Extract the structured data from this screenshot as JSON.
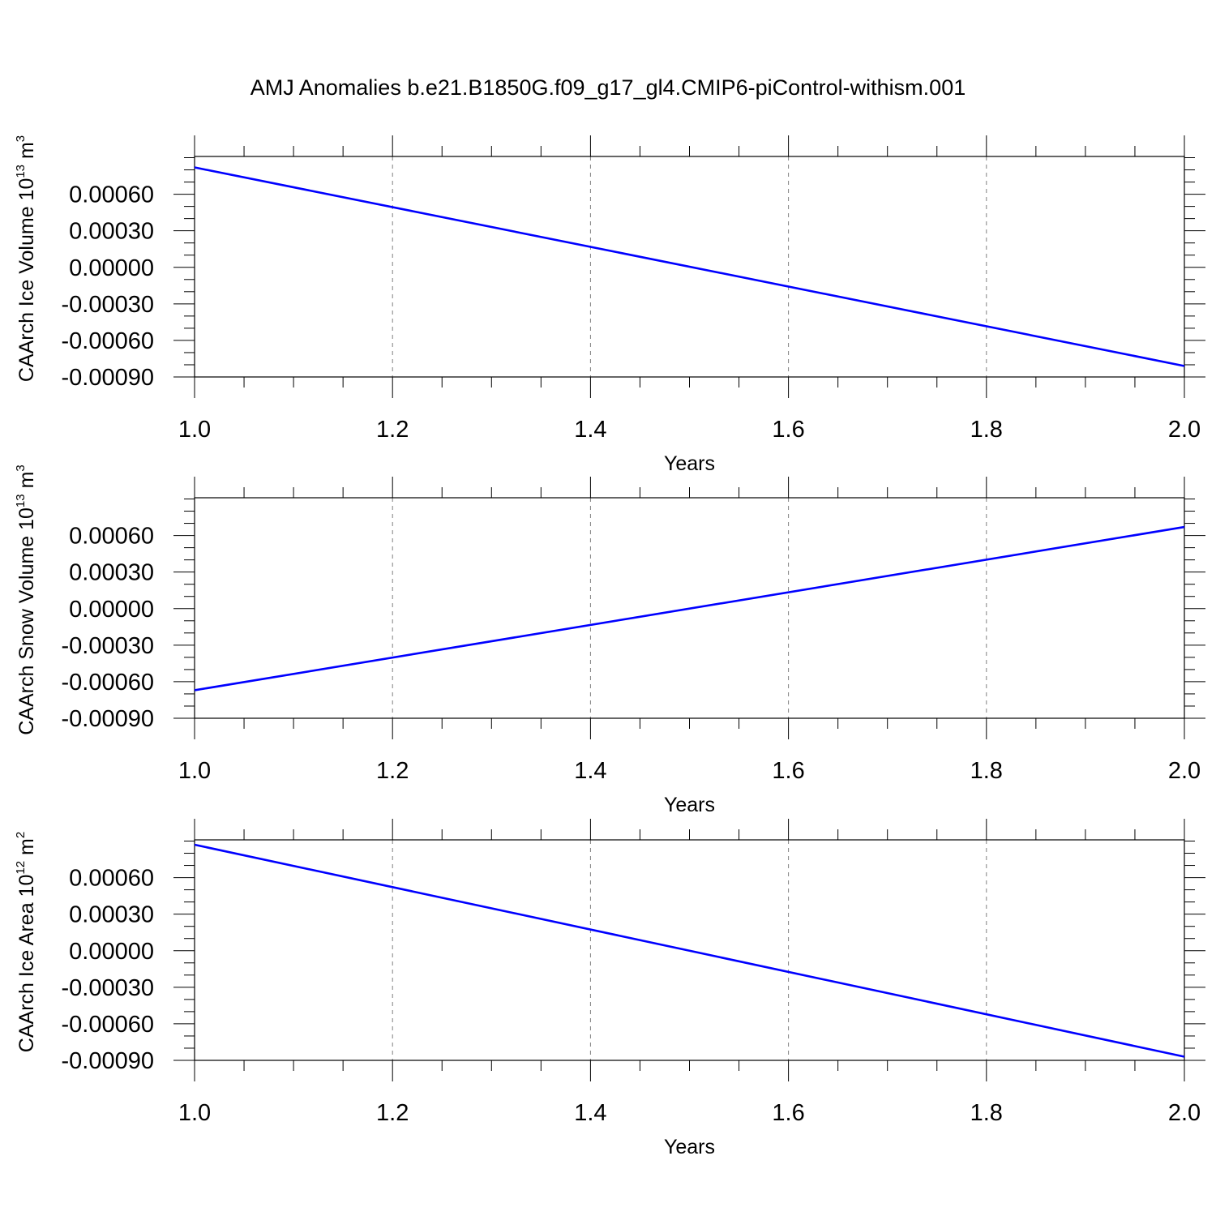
{
  "title": "AMJ Anomalies b.e21.B1850G.f09_g17_gl4.CMIP6-piControl-withism.001",
  "colors": {
    "line": "#0000ff",
    "axis": "#000000",
    "grid": "#808080"
  },
  "chart_data": [
    {
      "type": "line",
      "ylabel": "CAArch Ice Volume 10",
      "ylabel_exp": "13",
      "ylabel_unit": " m",
      "ylabel_unit_exp": "3",
      "xlabel": "Years",
      "xlim": [
        1.0,
        2.0
      ],
      "ylim": [
        -0.0009,
        0.00091
      ],
      "x_ticks": [
        "1.0",
        "1.2",
        "1.4",
        "1.6",
        "1.8",
        "2.0"
      ],
      "y_ticks": [
        "0.00060",
        "0.00030",
        "0.00000",
        "-0.00030",
        "-0.00060",
        "-0.00090"
      ],
      "grid": "vertical dashed",
      "series": [
        {
          "x": [
            1.0,
            2.0
          ],
          "y": [
            0.00082,
            -0.00081
          ]
        }
      ]
    },
    {
      "type": "line",
      "ylabel": "CAArch Snow Volume 10",
      "ylabel_exp": "13",
      "ylabel_unit": " m",
      "ylabel_unit_exp": "3",
      "xlabel": "Years",
      "xlim": [
        1.0,
        2.0
      ],
      "ylim": [
        -0.0009,
        0.00091
      ],
      "x_ticks": [
        "1.0",
        "1.2",
        "1.4",
        "1.6",
        "1.8",
        "2.0"
      ],
      "y_ticks": [
        "0.00060",
        "0.00030",
        "0.00000",
        "-0.00030",
        "-0.00060",
        "-0.00090"
      ],
      "grid": "vertical dashed",
      "series": [
        {
          "x": [
            1.0,
            2.0
          ],
          "y": [
            -0.00067,
            0.00067
          ]
        }
      ]
    },
    {
      "type": "line",
      "ylabel": "CAArch Ice Area 10",
      "ylabel_exp": "12",
      "ylabel_unit": " m",
      "ylabel_unit_exp": "2",
      "xlabel": "Years",
      "xlim": [
        1.0,
        2.0
      ],
      "ylim": [
        -0.0009,
        0.00091
      ],
      "x_ticks": [
        "1.0",
        "1.2",
        "1.4",
        "1.6",
        "1.8",
        "2.0"
      ],
      "y_ticks": [
        "0.00060",
        "0.00030",
        "0.00000",
        "-0.00030",
        "-0.00060",
        "-0.00090"
      ],
      "grid": "vertical dashed",
      "series": [
        {
          "x": [
            1.0,
            2.0
          ],
          "y": [
            0.00087,
            -0.00087
          ]
        }
      ]
    }
  ]
}
